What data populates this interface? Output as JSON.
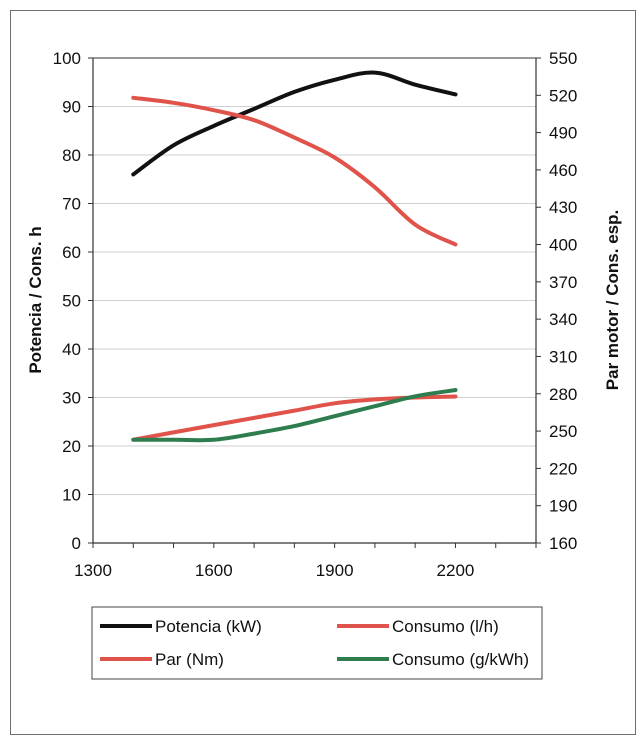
{
  "chart_data": {
    "type": "line",
    "x": [
      1400,
      1500,
      1600,
      1700,
      1800,
      1900,
      2000,
      2100,
      2200
    ],
    "xlim": [
      1300,
      2400
    ],
    "xticks": [
      "1300",
      "1600",
      "1900",
      "2200"
    ],
    "ylabel_left": "Potencia / Cons. h",
    "ylabel_right": "Par motor / Cons. esp.",
    "ylim_left": [
      0,
      100
    ],
    "ylim_right": [
      160,
      550
    ],
    "yticks_left": [
      "0",
      "10",
      "20",
      "30",
      "40",
      "50",
      "60",
      "70",
      "80",
      "90",
      "100"
    ],
    "yticks_right": [
      "160",
      "190",
      "220",
      "250",
      "280",
      "310",
      "340",
      "370",
      "400",
      "430",
      "460",
      "490",
      "520",
      "550"
    ],
    "grid": "horizontal",
    "series": [
      {
        "name": "Potencia (kW)",
        "axis": "left",
        "color": "#111111",
        "values": [
          76,
          82,
          86,
          89.5,
          93,
          95.5,
          97,
          94.5,
          92.5
        ]
      },
      {
        "name": "Consumo (l/h)",
        "axis": "left",
        "color": "#e0534a",
        "values": [
          21.3,
          22.8,
          24.3,
          25.8,
          27.3,
          28.8,
          29.6,
          30,
          30.2
        ]
      },
      {
        "name": "Par (Nm)",
        "axis": "right",
        "color": "#e0534a",
        "values": [
          518,
          514,
          508,
          500,
          486,
          470,
          446,
          416,
          400
        ]
      },
      {
        "name": "Consumo (g/kWh)",
        "axis": "right",
        "color": "#2d7d4f",
        "values": [
          243,
          243,
          243,
          248,
          254,
          262,
          270,
          278,
          283
        ]
      }
    ],
    "legend": {
      "placement": "bottom",
      "items": [
        {
          "label": "Potencia (kW)",
          "color": "#111111"
        },
        {
          "label": "Consumo (l/h)",
          "color": "#e0534a"
        },
        {
          "label": "Par (Nm)",
          "color": "#e0534a"
        },
        {
          "label": "Consumo (g/kWh)",
          "color": "#2d7d4f"
        }
      ]
    }
  }
}
